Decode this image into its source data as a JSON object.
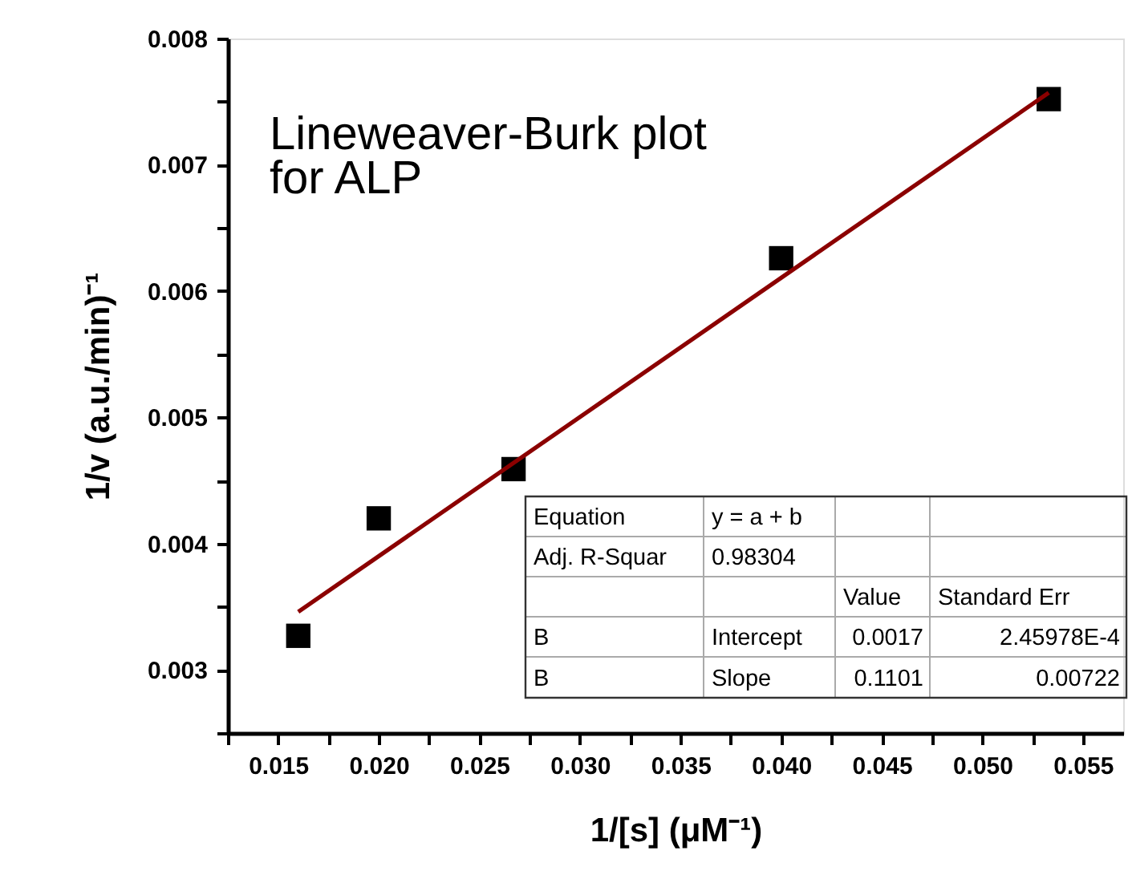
{
  "chart_data": {
    "type": "scatter",
    "xlabel": "1/[s] (μM⁻¹)",
    "ylabel": "1/v (a.u./min)⁻¹",
    "x": [
      0.016,
      0.02,
      0.0267,
      0.04,
      0.0533
    ],
    "series": [
      {
        "type": "scatter",
        "color": "#000000",
        "marker": "square",
        "values": [
          0.00327,
          0.0042,
          0.00459,
          0.00626,
          0.00752
        ]
      },
      {
        "type": "line",
        "color": "#8b0000",
        "line_style": "solid",
        "marker": "none",
        "x": [
          0.016,
          0.0533
        ],
        "values": [
          0.00346,
          0.00757
        ]
      }
    ],
    "xlim": [
      0.0125,
      0.057
    ],
    "ylim": [
      0.0025,
      0.008
    ],
    "xticks": [
      {
        "value": 0.0125,
        "label": null
      },
      0.015,
      {
        "value": 0.0175,
        "label": null
      },
      {
        "value": 0.02,
        "label": "0.020"
      },
      {
        "value": 0.0225,
        "label": null
      },
      0.025,
      {
        "value": 0.0275,
        "label": null
      },
      {
        "value": 0.03,
        "label": "0.030"
      },
      {
        "value": 0.0325,
        "label": null
      },
      0.035,
      {
        "value": 0.0375,
        "label": null
      },
      {
        "value": 0.04,
        "label": "0.040"
      },
      {
        "value": 0.0425,
        "label": null
      },
      0.045,
      {
        "value": 0.0475,
        "label": null
      },
      {
        "value": 0.05,
        "label": "0.050"
      },
      {
        "value": 0.0525,
        "label": null
      },
      0.055
    ],
    "yticks": [
      {
        "value": 0.0025,
        "label": null
      },
      0.003,
      {
        "value": 0.0035,
        "label": null
      },
      0.004,
      {
        "value": 0.0045,
        "label": null
      },
      0.005,
      {
        "value": 0.0055,
        "label": null
      },
      0.006,
      {
        "value": 0.0065,
        "label": null
      },
      0.007,
      {
        "value": 0.0075,
        "label": null
      },
      0.008
    ],
    "grid": false,
    "annotations": [
      "Lineweaver-Burk plot for ALP",
      "Equation",
      "y = a + b",
      "Adj. R-Squar",
      "0.98304",
      "Value",
      "Standard Err",
      "B",
      "Intercept",
      "0.0017",
      "2.45978E-4",
      "B",
      "Slope",
      "0.1101",
      "0.00722"
    ]
  }
}
